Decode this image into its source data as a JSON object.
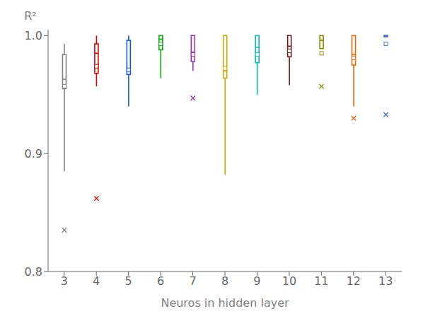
{
  "chart_data": {
    "type": "box",
    "xlabel": "Neuros in hidden layer",
    "ylabel": "R²",
    "categories": [
      "3",
      "4",
      "5",
      "6",
      "7",
      "8",
      "9",
      "10",
      "11",
      "12",
      "13"
    ],
    "colors": [
      "#808080",
      "#dd0000",
      "#1155dd",
      "#00aa00",
      "#9933bb",
      "#ccaa00",
      "#00bbbb",
      "#6b1a1a",
      "#888800",
      "#ee6600",
      "#4466cc"
    ],
    "boxes": [
      {
        "q1": 0.955,
        "med": 0.963,
        "q3": 0.984,
        "mean": 0.957,
        "whislo": 0.885,
        "whishi": 0.993,
        "fliers": [
          0.835
        ]
      },
      {
        "q1": 0.968,
        "med": 0.985,
        "q3": 0.993,
        "mean": 0.974,
        "whislo": 0.957,
        "whishi": 1.0,
        "fliers": [
          0.862
        ]
      },
      {
        "q1": 0.967,
        "med": 0.972,
        "q3": 0.996,
        "mean": 0.971,
        "whislo": 0.94,
        "whishi": 1.0,
        "fliers": []
      },
      {
        "q1": 0.988,
        "med": 0.997,
        "q3": 1.0,
        "mean": 0.993,
        "whislo": 0.964,
        "whishi": 1.0,
        "fliers": []
      },
      {
        "q1": 0.978,
        "med": 0.986,
        "q3": 1.0,
        "mean": 0.984,
        "whislo": 0.97,
        "whishi": 1.0,
        "fliers": [
          0.947
        ]
      },
      {
        "q1": 0.964,
        "med": 0.97,
        "q3": 1.0,
        "mean": 0.972,
        "whislo": 0.882,
        "whishi": 1.0,
        "fliers": []
      },
      {
        "q1": 0.977,
        "med": 0.99,
        "q3": 1.0,
        "mean": 0.984,
        "whislo": 0.95,
        "whishi": 1.0,
        "fliers": []
      },
      {
        "q1": 0.982,
        "med": 0.991,
        "q3": 1.0,
        "mean": 0.987,
        "whislo": 0.958,
        "whishi": 1.0,
        "fliers": []
      },
      {
        "q1": 0.989,
        "med": 0.996,
        "q3": 1.0,
        "mean": 0.985,
        "whislo": 0.994,
        "whishi": 1.0,
        "fliers": [
          0.957
        ]
      },
      {
        "q1": 0.975,
        "med": 0.984,
        "q3": 1.0,
        "mean": 0.981,
        "whislo": 0.94,
        "whishi": 1.0,
        "fliers": [
          0.93
        ]
      },
      {
        "q1": 0.999,
        "med": 1.0,
        "q3": 1.0,
        "mean": 0.993,
        "whislo": 1.0,
        "whishi": 1.0,
        "fliers": [
          0.933
        ]
      }
    ],
    "ylim": [
      0.8,
      1.005
    ],
    "yticks": [
      0.8,
      0.9,
      {
        "value": 1.0,
        "label": "1.0"
      }
    ],
    "grid": false
  }
}
